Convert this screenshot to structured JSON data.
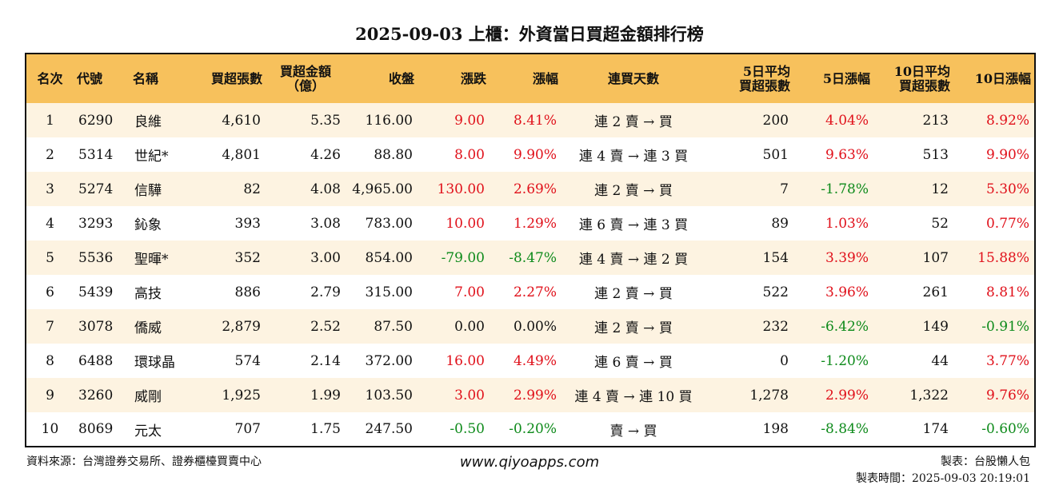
{
  "title": "2025-09-03 上櫃：外資當日買超金額排行榜",
  "headers": [
    "名次",
    "代號",
    "名稱",
    "買超張數",
    "買超金額\n（億）",
    "收盤",
    "漲跌",
    "漲幅",
    "連買天數",
    "5日平均\n買超張數",
    "5日漲幅",
    "10日平均\n買超張數",
    "10日漲幅"
  ],
  "rows": [
    {
      "rank": "1",
      "code": "6290",
      "name": "良維",
      "shares": "4,610",
      "amount": "5.35",
      "close": "116.00",
      "change": "9.00",
      "change_pct": "8.41%",
      "streak": "連 2 賣 → 買",
      "avg5": "200",
      "pct5": "4.04%",
      "avg10": "213",
      "pct10": "8.92%"
    },
    {
      "rank": "2",
      "code": "5314",
      "name": "世紀*",
      "shares": "4,801",
      "amount": "4.26",
      "close": "88.80",
      "change": "8.00",
      "change_pct": "9.90%",
      "streak": "連 4 賣 → 連 3 買",
      "avg5": "501",
      "pct5": "9.63%",
      "avg10": "513",
      "pct10": "9.90%"
    },
    {
      "rank": "3",
      "code": "5274",
      "name": "信驊",
      "shares": "82",
      "amount": "4.08",
      "close": "4,965.00",
      "change": "130.00",
      "change_pct": "2.69%",
      "streak": "連 2 賣 → 買",
      "avg5": "7",
      "pct5": "-1.78%",
      "avg10": "12",
      "pct10": "5.30%"
    },
    {
      "rank": "4",
      "code": "3293",
      "name": "鈊象",
      "shares": "393",
      "amount": "3.08",
      "close": "783.00",
      "change": "10.00",
      "change_pct": "1.29%",
      "streak": "連 6 賣 → 連 3 買",
      "avg5": "89",
      "pct5": "1.03%",
      "avg10": "52",
      "pct10": "0.77%"
    },
    {
      "rank": "5",
      "code": "5536",
      "name": "聖暉*",
      "shares": "352",
      "amount": "3.00",
      "close": "854.00",
      "change": "-79.00",
      "change_pct": "-8.47%",
      "streak": "連 4 賣 → 連 2 買",
      "avg5": "154",
      "pct5": "3.39%",
      "avg10": "107",
      "pct10": "15.88%"
    },
    {
      "rank": "6",
      "code": "5439",
      "name": "高技",
      "shares": "886",
      "amount": "2.79",
      "close": "315.00",
      "change": "7.00",
      "change_pct": "2.27%",
      "streak": "連 2 賣 → 買",
      "avg5": "522",
      "pct5": "3.96%",
      "avg10": "261",
      "pct10": "8.81%"
    },
    {
      "rank": "7",
      "code": "3078",
      "name": "僑威",
      "shares": "2,879",
      "amount": "2.52",
      "close": "87.50",
      "change": "0.00",
      "change_pct": "0.00%",
      "streak": "連 2 賣 → 買",
      "avg5": "232",
      "pct5": "-6.42%",
      "avg10": "149",
      "pct10": "-0.91%"
    },
    {
      "rank": "8",
      "code": "6488",
      "name": "環球晶",
      "shares": "574",
      "amount": "2.14",
      "close": "372.00",
      "change": "16.00",
      "change_pct": "4.49%",
      "streak": "連 6 賣 → 買",
      "avg5": "0",
      "pct5": "-1.20%",
      "avg10": "44",
      "pct10": "3.77%"
    },
    {
      "rank": "9",
      "code": "3260",
      "name": "威剛",
      "shares": "1,925",
      "amount": "1.99",
      "close": "103.50",
      "change": "3.00",
      "change_pct": "2.99%",
      "streak": "連 4 賣 → 連 10 買",
      "avg5": "1,278",
      "pct5": "2.99%",
      "avg10": "1,322",
      "pct10": "9.76%"
    },
    {
      "rank": "10",
      "code": "8069",
      "name": "元太",
      "shares": "707",
      "amount": "1.75",
      "close": "247.50",
      "change": "-0.50",
      "change_pct": "-0.20%",
      "streak": "賣 → 買",
      "avg5": "198",
      "pct5": "-8.84%",
      "avg10": "174",
      "pct10": "-0.60%"
    }
  ],
  "colors": {
    "header_bg": "#f7c15c",
    "row_alt": "#fdf3e1",
    "positive": "#e0101a",
    "negative": "#0d8a1a"
  },
  "footer": {
    "source": "資料來源：台灣證券交易所、證券櫃檯買賣中心",
    "site": "www.qiyoapps.com",
    "author": "製表：台股懶人包",
    "made_time": "製表時間：2025-09-03 20:19:01"
  }
}
